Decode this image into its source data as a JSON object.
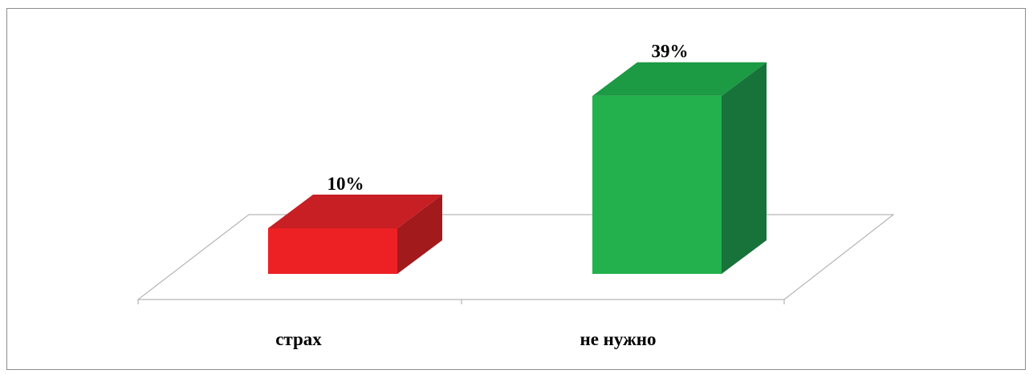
{
  "chart_data": {
    "type": "bar",
    "three_d": true,
    "categories": [
      "страх",
      "не нужно"
    ],
    "values": [
      10,
      39
    ],
    "data_labels": [
      "10%",
      "39%"
    ],
    "unit": "%",
    "colors": {
      "bars": [
        {
          "front": "#ED2024",
          "top": "#C71F24",
          "side": "#A31A1D"
        },
        {
          "front": "#22B14C",
          "top": "#1C9A44",
          "side": "#17733A"
        }
      ],
      "floor_line": "#a6a6a6",
      "frame": "#8c8c8c"
    },
    "grid": false,
    "legend": "none",
    "title": "",
    "xlabel": "",
    "ylabel": ""
  }
}
